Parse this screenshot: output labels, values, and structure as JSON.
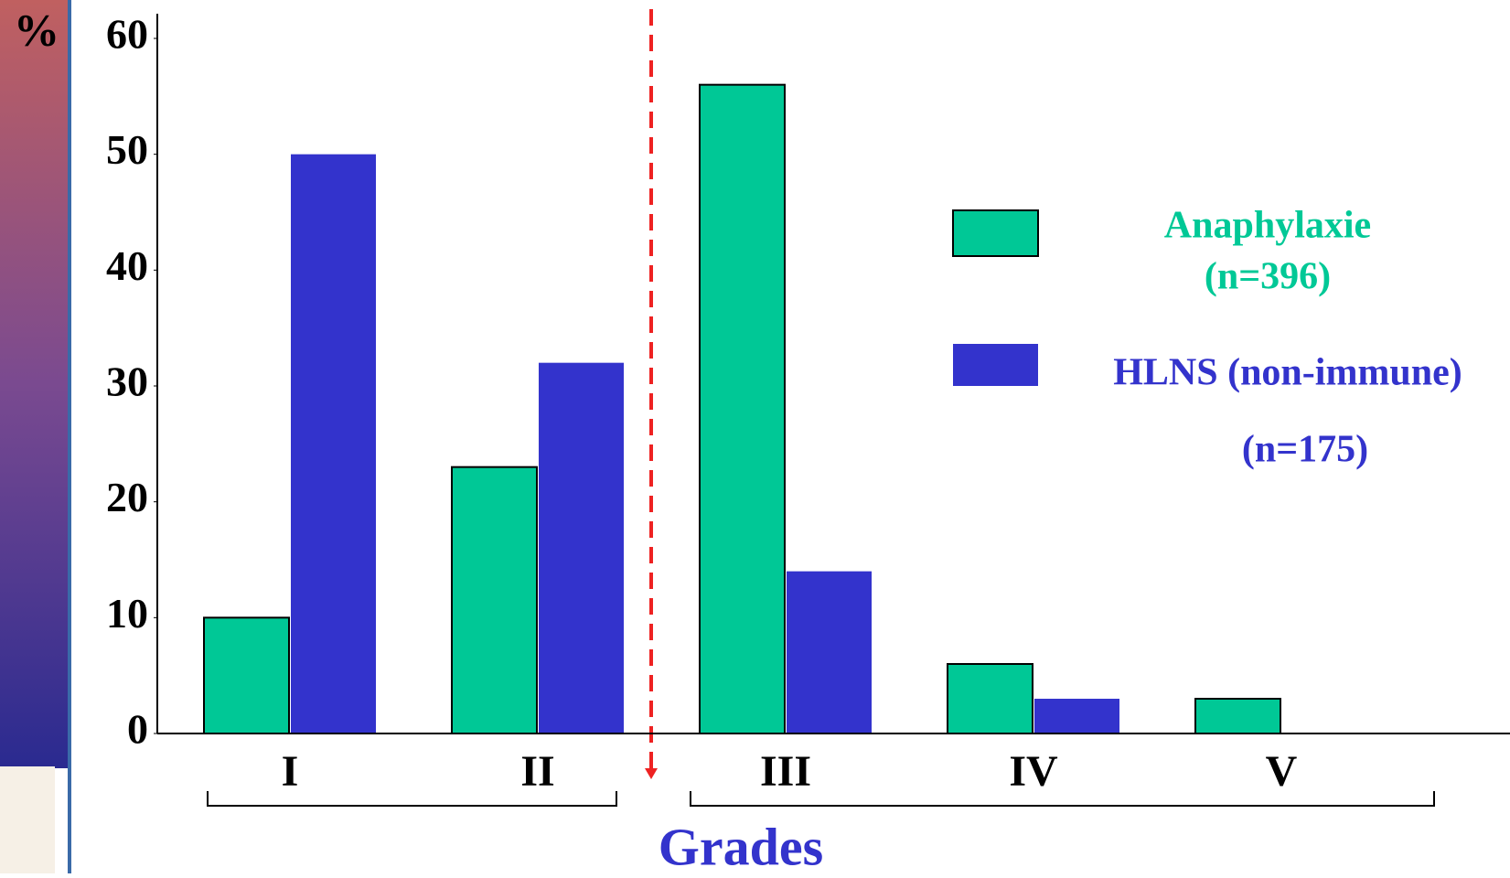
{
  "chart_data": {
    "type": "bar",
    "y_label": "%",
    "x_label": "Grades",
    "categories": [
      "I",
      "II",
      "III",
      "IV",
      "V"
    ],
    "series": [
      {
        "name": "Anaphylaxie",
        "note": "(n=396)",
        "color": "#00c896",
        "values": [
          10,
          23,
          56,
          6,
          3
        ]
      },
      {
        "name": "HLNS (non-immune)",
        "note": "(n=175)",
        "color": "#3333cc",
        "values": [
          50,
          32,
          14,
          3,
          0
        ]
      }
    ],
    "ylim": [
      0,
      60
    ],
    "yticks": [
      0,
      10,
      20,
      30,
      40,
      50,
      60
    ],
    "grid": false
  }
}
